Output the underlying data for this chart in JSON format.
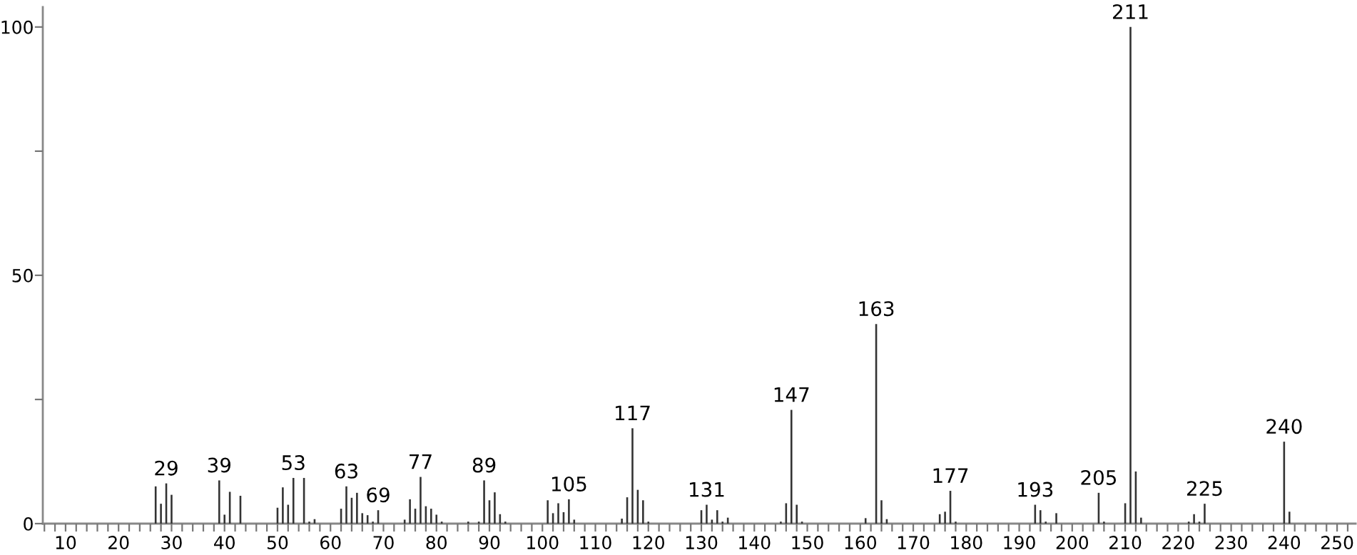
{
  "chart_data": {
    "type": "bar",
    "x": [
      27,
      28,
      29,
      30,
      39,
      40,
      41,
      43,
      50,
      51,
      52,
      53,
      55,
      56,
      57,
      62,
      63,
      64,
      65,
      66,
      67,
      68,
      69,
      74,
      75,
      76,
      77,
      78,
      79,
      80,
      81,
      86,
      88,
      89,
      90,
      91,
      92,
      93,
      101,
      102,
      103,
      104,
      105,
      106,
      115,
      116,
      117,
      118,
      119,
      120,
      130,
      131,
      132,
      133,
      134,
      135,
      145,
      146,
      147,
      148,
      149,
      161,
      163,
      164,
      165,
      175,
      176,
      177,
      178,
      193,
      194,
      195,
      197,
      205,
      206,
      210,
      211,
      212,
      213,
      222,
      223,
      224,
      225,
      240,
      241
    ],
    "values": [
      7.5,
      4.0,
      8.1,
      5.8,
      8.7,
      1.8,
      6.4,
      5.6,
      3.2,
      7.3,
      3.8,
      9.2,
      9.2,
      0.4,
      0.9,
      3.0,
      7.5,
      5.2,
      6.2,
      2.1,
      1.7,
      0.4,
      2.7,
      0.8,
      4.9,
      3.0,
      9.4,
      3.5,
      3.0,
      1.8,
      0.4,
      0.4,
      0.4,
      8.7,
      4.7,
      6.3,
      1.9,
      0.4,
      4.7,
      2.1,
      4.1,
      2.3,
      4.9,
      0.8,
      1.0,
      5.3,
      19.2,
      6.8,
      4.7,
      0.4,
      2.7,
      3.8,
      0.8,
      2.7,
      0.4,
      1.2,
      0.4,
      4.1,
      22.9,
      3.8,
      0.4,
      1.1,
      40.2,
      4.7,
      0.9,
      1.9,
      2.4,
      6.6,
      0.4,
      3.8,
      2.7,
      0.4,
      2.1,
      6.2,
      0.4,
      4.1,
      100,
      10.5,
      1.2,
      0.4,
      1.9,
      0.4,
      4.0,
      16.5,
      2.4
    ],
    "color": "#333333",
    "xlim": [
      5.7,
      253.5
    ],
    "ylim": [
      0,
      104
    ],
    "xticks": [
      {
        "value": 6,
        "label": null
      },
      {
        "value": 8,
        "label": null
      },
      10,
      {
        "value": 12,
        "label": null
      },
      {
        "value": 14,
        "label": null
      },
      {
        "value": 16,
        "label": null
      },
      {
        "value": 18,
        "label": null
      },
      20,
      {
        "value": 22,
        "label": null
      },
      {
        "value": 24,
        "label": null
      },
      {
        "value": 26,
        "label": null
      },
      {
        "value": 28,
        "label": null
      },
      30,
      {
        "value": 32,
        "label": null
      },
      {
        "value": 34,
        "label": null
      },
      {
        "value": 36,
        "label": null
      },
      {
        "value": 38,
        "label": null
      },
      40,
      {
        "value": 42,
        "label": null
      },
      {
        "value": 44,
        "label": null
      },
      {
        "value": 46,
        "label": null
      },
      {
        "value": 48,
        "label": null
      },
      50,
      {
        "value": 52,
        "label": null
      },
      {
        "value": 54,
        "label": null
      },
      {
        "value": 56,
        "label": null
      },
      {
        "value": 58,
        "label": null
      },
      60,
      {
        "value": 62,
        "label": null
      },
      {
        "value": 64,
        "label": null
      },
      {
        "value": 66,
        "label": null
      },
      {
        "value": 68,
        "label": null
      },
      70,
      {
        "value": 72,
        "label": null
      },
      {
        "value": 74,
        "label": null
      },
      {
        "value": 76,
        "label": null
      },
      {
        "value": 78,
        "label": null
      },
      80,
      {
        "value": 82,
        "label": null
      },
      {
        "value": 84,
        "label": null
      },
      {
        "value": 86,
        "label": null
      },
      {
        "value": 88,
        "label": null
      },
      90,
      {
        "value": 92,
        "label": null
      },
      {
        "value": 94,
        "label": null
      },
      {
        "value": 96,
        "label": null
      },
      {
        "value": 98,
        "label": null
      },
      100,
      {
        "value": 102,
        "label": null
      },
      {
        "value": 104,
        "label": null
      },
      {
        "value": 106,
        "label": null
      },
      {
        "value": 108,
        "label": null
      },
      110,
      {
        "value": 112,
        "label": null
      },
      {
        "value": 114,
        "label": null
      },
      {
        "value": 116,
        "label": null
      },
      {
        "value": 118,
        "label": null
      },
      120,
      {
        "value": 122,
        "label": null
      },
      {
        "value": 124,
        "label": null
      },
      {
        "value": 126,
        "label": null
      },
      {
        "value": 128,
        "label": null
      },
      130,
      {
        "value": 132,
        "label": null
      },
      {
        "value": 134,
        "label": null
      },
      {
        "value": 136,
        "label": null
      },
      {
        "value": 138,
        "label": null
      },
      140,
      {
        "value": 142,
        "label": null
      },
      {
        "value": 144,
        "label": null
      },
      {
        "value": 146,
        "label": null
      },
      {
        "value": 148,
        "label": null
      },
      150,
      {
        "value": 152,
        "label": null
      },
      {
        "value": 154,
        "label": null
      },
      {
        "value": 156,
        "label": null
      },
      {
        "value": 158,
        "label": null
      },
      160,
      {
        "value": 162,
        "label": null
      },
      {
        "value": 164,
        "label": null
      },
      {
        "value": 166,
        "label": null
      },
      {
        "value": 168,
        "label": null
      },
      170,
      {
        "value": 172,
        "label": null
      },
      {
        "value": 174,
        "label": null
      },
      {
        "value": 176,
        "label": null
      },
      {
        "value": 178,
        "label": null
      },
      180,
      {
        "value": 182,
        "label": null
      },
      {
        "value": 184,
        "label": null
      },
      {
        "value": 186,
        "label": null
      },
      {
        "value": 188,
        "label": null
      },
      190,
      {
        "value": 192,
        "label": null
      },
      {
        "value": 194,
        "label": null
      },
      {
        "value": 196,
        "label": null
      },
      {
        "value": 198,
        "label": null
      },
      200,
      {
        "value": 202,
        "label": null
      },
      {
        "value": 204,
        "label": null
      },
      {
        "value": 206,
        "label": null
      },
      {
        "value": 208,
        "label": null
      },
      210,
      {
        "value": 212,
        "label": null
      },
      {
        "value": 214,
        "label": null
      },
      {
        "value": 216,
        "label": null
      },
      {
        "value": 218,
        "label": null
      },
      220,
      {
        "value": 222,
        "label": null
      },
      {
        "value": 224,
        "label": null
      },
      {
        "value": 226,
        "label": null
      },
      {
        "value": 228,
        "label": null
      },
      230,
      {
        "value": 232,
        "label": null
      },
      {
        "value": 234,
        "label": null
      },
      {
        "value": 236,
        "label": null
      },
      {
        "value": 238,
        "label": null
      },
      240,
      {
        "value": 242,
        "label": null
      },
      {
        "value": 244,
        "label": null
      },
      {
        "value": 246,
        "label": null
      },
      {
        "value": 248,
        "label": null
      },
      250,
      {
        "value": 252,
        "label": null
      }
    ],
    "yticks": [
      0,
      {
        "value": 25,
        "label": null
      },
      50,
      {
        "value": 75,
        "label": null
      },
      100
    ],
    "grid": false,
    "legend": false,
    "annotations": [
      {
        "text": "29",
        "x": 29,
        "y": 8.1
      },
      {
        "text": "39",
        "x": 39,
        "y": 8.7
      },
      {
        "text": "53",
        "x": 53,
        "y": 9.2
      },
      {
        "text": "63",
        "x": 63,
        "y": 7.5
      },
      {
        "text": "69",
        "x": 69,
        "y": 2.7
      },
      {
        "text": "77",
        "x": 77,
        "y": 9.4
      },
      {
        "text": "89",
        "x": 89,
        "y": 8.7
      },
      {
        "text": "105",
        "x": 105,
        "y": 4.9
      },
      {
        "text": "117",
        "x": 117,
        "y": 19.2
      },
      {
        "text": "131",
        "x": 131,
        "y": 3.8
      },
      {
        "text": "147",
        "x": 147,
        "y": 22.9
      },
      {
        "text": "163",
        "x": 163,
        "y": 40.2
      },
      {
        "text": "177",
        "x": 177,
        "y": 6.6
      },
      {
        "text": "193",
        "x": 193,
        "y": 3.8
      },
      {
        "text": "205",
        "x": 205,
        "y": 6.2
      },
      {
        "text": "211",
        "x": 211,
        "y": 100
      },
      {
        "text": "225",
        "x": 225,
        "y": 4.0
      },
      {
        "text": "240",
        "x": 240,
        "y": 16.5
      }
    ]
  }
}
